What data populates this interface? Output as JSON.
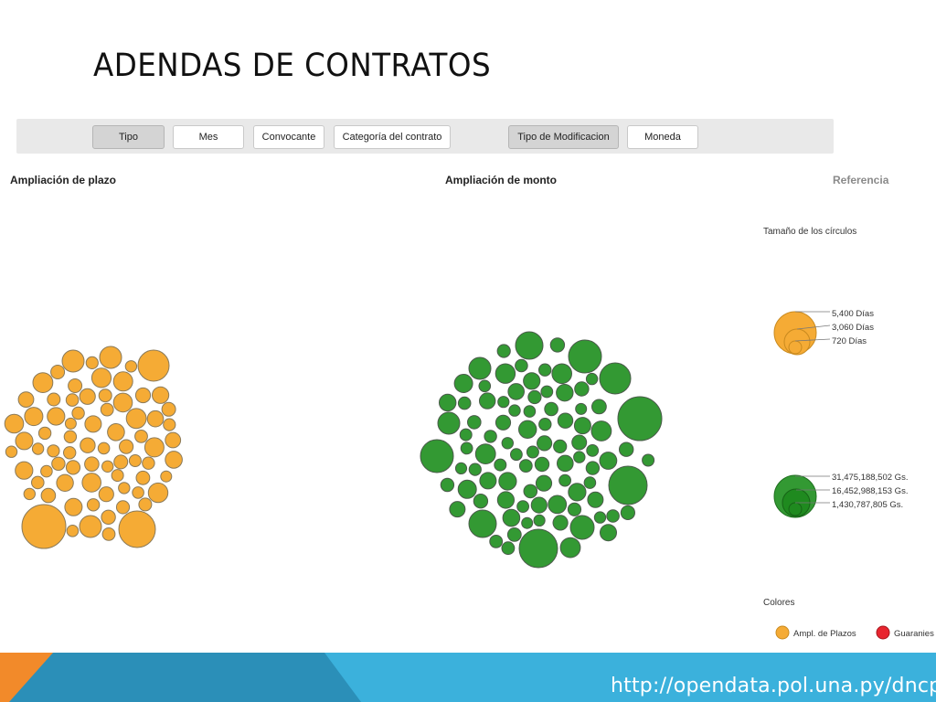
{
  "slide": {
    "title": "ADENDAS DE CONTRATOS"
  },
  "toolbar": {
    "buttons": [
      {
        "label": "Tipo",
        "active": true
      },
      {
        "label": "Mes",
        "active": false
      },
      {
        "label": "Convocante",
        "active": false
      },
      {
        "label": "Categoría del contrato",
        "active": false
      },
      {
        "label": "Tipo de Modificacion",
        "active": true
      },
      {
        "label": "Moneda",
        "active": false
      }
    ]
  },
  "panels": {
    "left_title": "Ampliación de plazo",
    "right_title": "Ampliación de monto",
    "reference_title": "Referencia"
  },
  "legend": {
    "size_heading": "Tamaño de los círculos",
    "days": [
      "5,400 Días",
      "3,060 Días",
      "720 Días"
    ],
    "amounts": [
      "31,475,188,502 Gs.",
      "16,452,988,153 Gs.",
      "1,430,787,805 Gs."
    ],
    "colors_heading": "Colores",
    "color_items": [
      {
        "label": "Ampl. de Plazos",
        "color": "#f5ab35"
      },
      {
        "label": "Guaranies",
        "color": "#e8252f"
      }
    ]
  },
  "colors": {
    "orange": "#f5ab35",
    "green": "#339933",
    "green_dark": "#1f8a1f",
    "toolbar_bg": "#e9e9e9",
    "footer_blue": "#3bb1dc",
    "footer_orange": "#f28a2a"
  },
  "footer": {
    "url": "http://opendata.pol.una.py/dncp"
  }
}
